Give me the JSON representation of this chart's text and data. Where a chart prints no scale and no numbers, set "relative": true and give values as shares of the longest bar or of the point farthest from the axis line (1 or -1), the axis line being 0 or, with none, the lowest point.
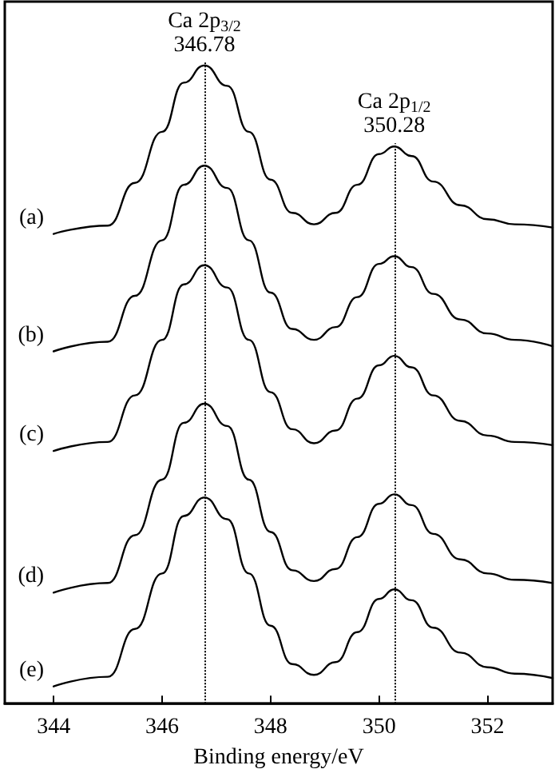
{
  "chart_data": {
    "type": "line",
    "relative": true,
    "xlabel": "Binding energy/eV",
    "x": [
      344,
      345,
      345.5,
      346,
      346.4,
      346.78,
      347.2,
      347.6,
      348,
      348.4,
      348.8,
      349.2,
      349.6,
      350,
      350.28,
      350.6,
      351,
      351.5,
      352,
      352.5,
      353.2
    ],
    "series": [
      {
        "name": "(a)",
        "color": "#000000",
        "values": [
          0.736,
          0.749,
          0.816,
          0.896,
          0.973,
          1,
          0.968,
          0.896,
          0.821,
          0.769,
          0.751,
          0.769,
          0.813,
          0.861,
          0.873,
          0.858,
          0.818,
          0.781,
          0.759,
          0.751,
          0.746
        ]
      },
      {
        "name": "(b)",
        "color": "#000000",
        "values": [
          0.552,
          0.567,
          0.639,
          0.726,
          0.813,
          0.843,
          0.808,
          0.726,
          0.644,
          0.587,
          0.57,
          0.59,
          0.637,
          0.689,
          0.701,
          0.684,
          0.642,
          0.602,
          0.58,
          0.57,
          0.56
        ]
      },
      {
        "name": "(c)",
        "color": "#000000",
        "values": [
          0.396,
          0.41,
          0.483,
          0.57,
          0.657,
          0.687,
          0.652,
          0.57,
          0.488,
          0.43,
          0.408,
          0.428,
          0.478,
          0.53,
          0.545,
          0.527,
          0.483,
          0.443,
          0.42,
          0.41,
          0.405
        ]
      },
      {
        "name": "(d)",
        "color": "#000000",
        "values": [
          0.174,
          0.189,
          0.264,
          0.351,
          0.44,
          0.47,
          0.435,
          0.351,
          0.269,
          0.209,
          0.192,
          0.211,
          0.261,
          0.313,
          0.328,
          0.311,
          0.266,
          0.226,
          0.204,
          0.194,
          0.189
        ]
      },
      {
        "name": "(e)",
        "color": "#000000",
        "values": [
          0.027,
          0.042,
          0.117,
          0.204,
          0.294,
          0.323,
          0.289,
          0.204,
          0.122,
          0.062,
          0.045,
          0.065,
          0.112,
          0.164,
          0.179,
          0.162,
          0.119,
          0.08,
          0.057,
          0.047,
          0.04
        ]
      }
    ],
    "xlim": [
      343.1,
      353.2
    ],
    "xticks": [
      344,
      346,
      348,
      350,
      352
    ],
    "ref_lines": [
      {
        "axis": "x",
        "value": 346.78,
        "label": "Ca 2p$_{3/2}$\n346.78",
        "line_style": "dotted",
        "color": "#000000"
      },
      {
        "axis": "x",
        "value": 350.28,
        "label": "Ca 2p$_{1/2}$\n350.28",
        "line_style": "dotted",
        "color": "#000000"
      }
    ],
    "tick_labels": "x",
    "grid": false,
    "legend": false,
    "marker": "none",
    "line_style": "solid"
  }
}
